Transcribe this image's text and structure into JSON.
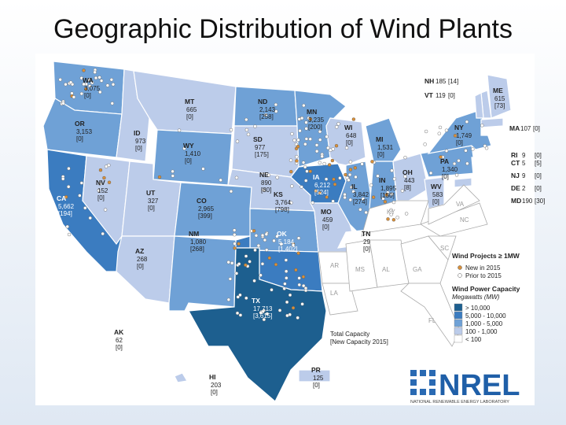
{
  "title": "Geographic Distribution of Wind Plants",
  "map": {
    "states": [
      {
        "abbr": "WA",
        "capacity": "3,075",
        "new": "[0]",
        "color": "#6fa1d6"
      },
      {
        "abbr": "OR",
        "capacity": "3,153",
        "new": "[0]",
        "color": "#6fa1d6"
      },
      {
        "abbr": "CA",
        "capacity": "5,662",
        "new": "[194]",
        "color": "#3b7cc0"
      },
      {
        "abbr": "NV",
        "capacity": "152",
        "new": "[0]",
        "color": "#bcccea"
      },
      {
        "abbr": "ID",
        "capacity": "973",
        "new": "[0]",
        "color": "#bcccea"
      },
      {
        "abbr": "MT",
        "capacity": "665",
        "new": "[0]",
        "color": "#bcccea"
      },
      {
        "abbr": "WY",
        "capacity": "1,410",
        "new": "[0]",
        "color": "#6fa1d6"
      },
      {
        "abbr": "UT",
        "capacity": "327",
        "new": "[0]",
        "color": "#bcccea"
      },
      {
        "abbr": "AZ",
        "capacity": "268",
        "new": "[0]",
        "color": "#bcccea"
      },
      {
        "abbr": "CO",
        "capacity": "2,965",
        "new": "[399]",
        "color": "#6fa1d6"
      },
      {
        "abbr": "NM",
        "capacity": "1,080",
        "new": "[268]",
        "color": "#6fa1d6"
      },
      {
        "abbr": "ND",
        "capacity": "2,143",
        "new": "[258]",
        "color": "#6fa1d6"
      },
      {
        "abbr": "SD",
        "capacity": "977",
        "new": "[175]",
        "color": "#bcccea"
      },
      {
        "abbr": "NE",
        "capacity": "890",
        "new": "[80]",
        "color": "#bcccea"
      },
      {
        "abbr": "KS",
        "capacity": "3,764",
        "new": "[798]",
        "color": "#6fa1d6"
      },
      {
        "abbr": "OK",
        "capacity": "5,184",
        "new": "[1,402]",
        "color": "#3b7cc0"
      },
      {
        "abbr": "TX",
        "capacity": "17,713",
        "new": "[3,615]",
        "color": "#1d5f8f"
      },
      {
        "abbr": "MN",
        "capacity": "3,235",
        "new": "[200]",
        "color": "#6fa1d6"
      },
      {
        "abbr": "IA",
        "capacity": "6,212",
        "new": "[524]",
        "color": "#3b7cc0"
      },
      {
        "abbr": "MO",
        "capacity": "459",
        "new": "[0]",
        "color": "#bcccea"
      },
      {
        "abbr": "WI",
        "capacity": "648",
        "new": "[0]",
        "color": "#bcccea"
      },
      {
        "abbr": "IL",
        "capacity": "3,842",
        "new": "[274]",
        "color": "#6fa1d6"
      },
      {
        "abbr": "MI",
        "capacity": "1,531",
        "new": "[0]",
        "color": "#6fa1d6"
      },
      {
        "abbr": "IN",
        "capacity": "1,895",
        "new": "[150]",
        "color": "#6fa1d6"
      },
      {
        "abbr": "OH",
        "capacity": "443",
        "new": "[8]",
        "color": "#bcccea"
      },
      {
        "abbr": "PA",
        "capacity": "1,340",
        "new": "[0]",
        "color": "#6fa1d6"
      },
      {
        "abbr": "NY",
        "capacity": "1,749",
        "new": "[0]",
        "color": "#6fa1d6"
      },
      {
        "abbr": "WV",
        "capacity": "583",
        "new": "[0]",
        "color": "#bcccea"
      },
      {
        "abbr": "TN",
        "capacity": "29",
        "new": "[0]",
        "color": "#ffffff"
      },
      {
        "abbr": "ME",
        "capacity": "615",
        "new": "[73]",
        "color": "#bcccea"
      },
      {
        "abbr": "NH",
        "capacity": "185",
        "new": "[14]",
        "color": "#bcccea"
      },
      {
        "abbr": "VT",
        "capacity": "119",
        "new": "[0]",
        "color": "#bcccea"
      },
      {
        "abbr": "MA",
        "capacity": "107",
        "new": "[0]",
        "color": "#bcccea"
      },
      {
        "abbr": "RI",
        "capacity": "9",
        "new": "[0]",
        "color": "#ffffff"
      },
      {
        "abbr": "CT",
        "capacity": "5",
        "new": "[5]",
        "color": "#ffffff"
      },
      {
        "abbr": "NJ",
        "capacity": "9",
        "new": "[0]",
        "color": "#ffffff"
      },
      {
        "abbr": "DE",
        "capacity": "2",
        "new": "[0]",
        "color": "#ffffff"
      },
      {
        "abbr": "MD",
        "capacity": "190",
        "new": "[30]",
        "color": "#bcccea"
      },
      {
        "abbr": "AK",
        "capacity": "62",
        "new": "[0]",
        "color": "#ffffff"
      },
      {
        "abbr": "HI",
        "capacity": "203",
        "new": "[0]",
        "color": "#bcccea"
      },
      {
        "abbr": "PR",
        "capacity": "125",
        "new": "[0]",
        "color": "#bcccea"
      }
    ],
    "unlabeled_states": [
      "AR",
      "LA",
      "MS",
      "AL",
      "GA",
      "SC",
      "NC",
      "VA",
      "KY",
      "FL"
    ],
    "legend": {
      "projects_title": "Wind Projects ≥ 1MW",
      "projects": [
        {
          "label": "New in 2015",
          "color": "#d9903a"
        },
        {
          "label": "Prior to 2015",
          "color": "#ffffff"
        }
      ],
      "capacity_title": "Wind Power Capacity",
      "capacity_unit": "Megawatts (MW)",
      "classes": [
        {
          "label": "> 10,000",
          "color": "#1d5f8f"
        },
        {
          "label": "5,000 - 10,000",
          "color": "#3b7cc0"
        },
        {
          "label": "1,000 - 5,000",
          "color": "#6fa1d6"
        },
        {
          "label": "100 - 1,000",
          "color": "#bcccea"
        },
        {
          "label": "< 100",
          "color": "#ffffff"
        }
      ],
      "total_label": "Total Capacity",
      "new_label": "[New Capacity 2015]"
    }
  },
  "logo": {
    "name": "NREL",
    "subtitle": "NATIONAL RENEWABLE ENERGY LABORATORY"
  }
}
